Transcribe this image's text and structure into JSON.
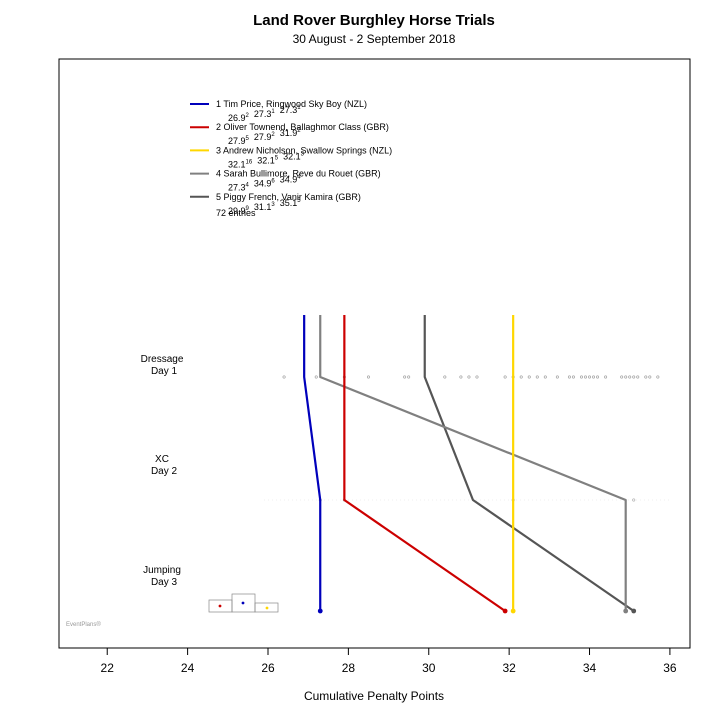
{
  "chart_data": {
    "type": "line",
    "title": "Land Rover Burghley Horse Trials",
    "subtitle": "30 August - 2 September 2018",
    "xlabel": "Cumulative Penalty Points",
    "xlim": [
      20.8,
      36.5
    ],
    "xticks": [
      22,
      24,
      26,
      28,
      30,
      32,
      34,
      36
    ],
    "phases": [
      {
        "line1": "Dressage",
        "line2": "Day 1"
      },
      {
        "line1": "XC",
        "line2": "Day 2"
      },
      {
        "line1": "Jumping",
        "line2": "Day 3"
      }
    ],
    "series": [
      {
        "name": "1 Tim Price,  Ringwood Sky Boy (NZL)",
        "color": "#0000bb",
        "values": [
          26.9,
          27.3,
          27.3
        ],
        "score_labels": [
          {
            "v": "26.9",
            "r": "2"
          },
          {
            "v": "27.3",
            "r": "1"
          },
          {
            "v": "27.3",
            "r": "1"
          }
        ]
      },
      {
        "name": "2 Oliver Townend,  Ballaghmor Class (GBR)",
        "color": "#cc0000",
        "values": [
          27.9,
          27.9,
          31.9
        ],
        "score_labels": [
          {
            "v": "27.9",
            "r": "5"
          },
          {
            "v": "27.9",
            "r": "2"
          },
          {
            "v": "31.9",
            "r": "2"
          }
        ]
      },
      {
        "name": "3 Andrew Nicholson,  Swallow Springs (NZL)",
        "color": "#ffd700",
        "values": [
          32.1,
          32.1,
          32.1
        ],
        "score_labels": [
          {
            "v": "32.1",
            "r": "16"
          },
          {
            "v": "32.1",
            "r": "5"
          },
          {
            "v": "32.1",
            "r": "3"
          }
        ]
      },
      {
        "name": "4 Sarah Bullimore,  Reve du Rouet (GBR)",
        "color": "#808080",
        "values": [
          27.3,
          34.9,
          34.9
        ],
        "score_labels": [
          {
            "v": "27.3",
            "r": "4"
          },
          {
            "v": "34.9",
            "r": "6"
          },
          {
            "v": "34.9",
            "r": "4"
          }
        ]
      },
      {
        "name": "5 Piggy French,  Vanir Kamira (GBR)",
        "color": "#555555",
        "values": [
          29.9,
          31.1,
          35.1
        ],
        "score_labels": [
          {
            "v": "29.9",
            "r": "9"
          },
          {
            "v": "31.1",
            "r": "3"
          },
          {
            "v": "35.1",
            "r": "5"
          }
        ]
      }
    ],
    "entries_label": "72 entries",
    "dressage_scores": [
      26.4,
      27.2,
      27.9,
      28.5,
      29.4,
      29.5,
      30.4,
      30.8,
      31.0,
      31.2,
      31.9,
      32.1,
      32.3,
      32.5,
      32.7,
      32.9,
      33.2,
      33.5,
      33.6,
      33.8,
      33.9,
      34.0,
      34.1,
      34.2,
      34.4,
      34.8,
      34.9,
      35.0,
      35.1,
      35.2,
      35.4,
      35.5,
      35.7
    ],
    "xc_scores": [
      27.3,
      27.9,
      32.1,
      35.1
    ],
    "watermark": "EventPlans®"
  }
}
